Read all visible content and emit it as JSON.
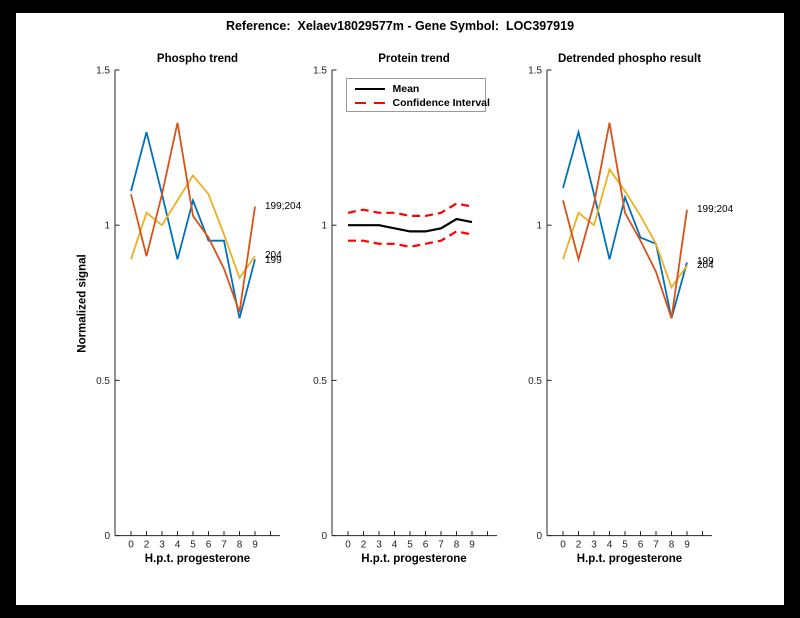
{
  "figure": {
    "title": "Reference:  Xelaev18029577m - Gene Symbol:  LOC397919",
    "background": "#000000",
    "canvas": "#ffffff"
  },
  "axes": {
    "ylabel": "Normalized signal",
    "xlabel": "H.p.t. progesterone",
    "ylim": [
      0,
      1.5
    ],
    "y_ticks": [
      0,
      0.5,
      1,
      1.5
    ],
    "y_tick_labels": [
      "0",
      "0.5",
      "1",
      "1.5"
    ],
    "x_tick_labels": [
      "0",
      "2",
      "3",
      "4",
      "5",
      "6",
      "7",
      "8",
      "9"
    ],
    "axis_color": "#262626"
  },
  "colors": {
    "blue": "#0072BD",
    "orange": "#D95319",
    "yellow": "#EDB120",
    "red": "#FF0000",
    "black": "#000000"
  },
  "chart_data": [
    {
      "type": "line",
      "title": "Phospho trend",
      "xlabel": "H.p.t. progesterone",
      "ylabel": "Normalized signal",
      "ylim": [
        0,
        1.5
      ],
      "grid": false,
      "categories": [
        "0",
        "2",
        "3",
        "4",
        "5",
        "6",
        "7",
        "8",
        "9"
      ],
      "series": [
        {
          "name": "199",
          "color": "#0072BD",
          "values": [
            1.11,
            1.3,
            1.1,
            0.89,
            1.08,
            0.95,
            0.95,
            0.7,
            0.89
          ]
        },
        {
          "name": "204",
          "color": "#EDB120",
          "values": [
            0.89,
            1.04,
            1.0,
            1.08,
            1.16,
            1.1,
            0.97,
            0.83,
            0.9
          ]
        },
        {
          "name": "199;204",
          "color": "#D95319",
          "values": [
            1.1,
            0.9,
            1.1,
            1.33,
            1.03,
            0.96,
            0.86,
            0.72,
            1.06
          ]
        }
      ],
      "end_labels": [
        {
          "text": "199;204",
          "value": 1.06
        },
        {
          "text": "204",
          "value": 0.902
        },
        {
          "text": "199",
          "value": 0.886
        }
      ]
    },
    {
      "type": "line",
      "title": "Protein trend",
      "xlabel": "H.p.t. progesterone",
      "ylim": [
        0,
        1.5
      ],
      "grid": false,
      "legend_position": "top",
      "categories": [
        "0",
        "2",
        "3",
        "4",
        "5",
        "6",
        "7",
        "8",
        "9"
      ],
      "series": [
        {
          "name": "Mean",
          "color": "#000000",
          "width": 2.2,
          "values": [
            1.0,
            1.0,
            1.0,
            0.99,
            0.98,
            0.98,
            0.99,
            1.02,
            1.01
          ]
        },
        {
          "name": "Confidence Interval",
          "color": "#FF0000",
          "width": 2.2,
          "dash": "8 5",
          "values": [
            1.04,
            1.05,
            1.04,
            1.04,
            1.03,
            1.03,
            1.04,
            1.07,
            1.06
          ]
        },
        {
          "name": "",
          "color": "#FF0000",
          "width": 2.2,
          "dash": "8 5",
          "values": [
            0.95,
            0.95,
            0.94,
            0.94,
            0.93,
            0.94,
            0.95,
            0.98,
            0.97
          ]
        }
      ],
      "end_labels": []
    },
    {
      "type": "line",
      "title": "Detrended phospho result",
      "xlabel": "H.p.t. progesterone",
      "ylim": [
        0,
        1.5
      ],
      "grid": false,
      "categories": [
        "0",
        "2",
        "3",
        "4",
        "5",
        "6",
        "7",
        "8",
        "9"
      ],
      "series": [
        {
          "name": "199",
          "color": "#0072BD",
          "values": [
            1.12,
            1.3,
            1.1,
            0.89,
            1.09,
            0.96,
            0.94,
            0.7,
            0.88
          ]
        },
        {
          "name": "204",
          "color": "#EDB120",
          "values": [
            0.89,
            1.04,
            1.0,
            1.18,
            1.11,
            1.03,
            0.94,
            0.8,
            0.87
          ]
        },
        {
          "name": "199;204",
          "color": "#D95319",
          "values": [
            1.08,
            0.89,
            1.07,
            1.33,
            1.04,
            0.95,
            0.85,
            0.7,
            1.05
          ]
        }
      ],
      "end_labels": [
        {
          "text": "199;204",
          "value": 1.05
        },
        {
          "text": "199",
          "value": 0.883
        },
        {
          "text": "204",
          "value": 0.868
        }
      ]
    }
  ]
}
